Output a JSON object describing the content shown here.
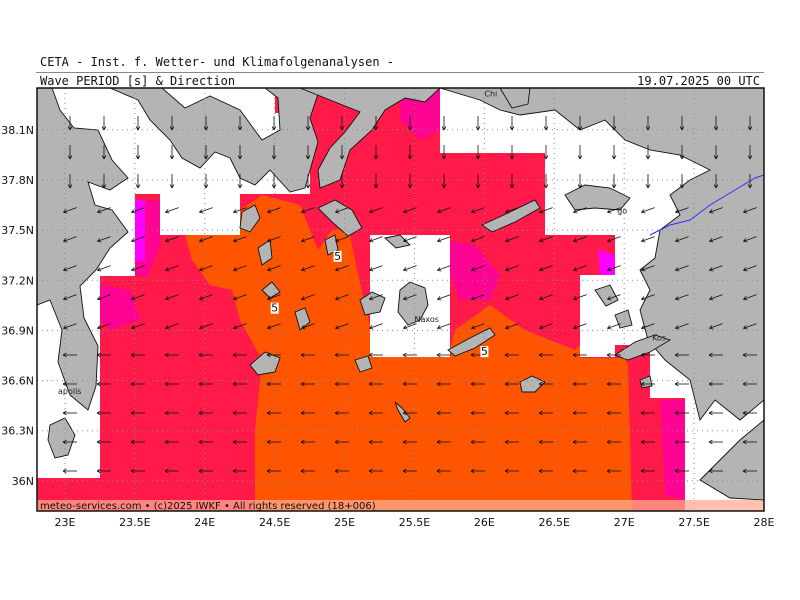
{
  "header": {
    "institute": "CETA - Inst. f. Wetter- und Klimafolgenanalysen -",
    "parameter": "Wave_PERIOD_[s]_&_Direction",
    "datetime": "19.07.2025 00 UTC"
  },
  "footer": {
    "credit": "meteo-services.com • (c)2025 IWKF • All rights reserved (18+006)"
  },
  "axes": {
    "lon_min": 22.8,
    "lon_max": 28.0,
    "lat_min": 35.82,
    "lat_max": 38.35,
    "lon_ticks": [
      {
        "value": 23.0,
        "label": "23E"
      },
      {
        "value": 23.5,
        "label": "23.5E"
      },
      {
        "value": 24.0,
        "label": "24E"
      },
      {
        "value": 24.5,
        "label": "24.5E"
      },
      {
        "value": 25.0,
        "label": "25E"
      },
      {
        "value": 25.5,
        "label": "25.5E"
      },
      {
        "value": 26.0,
        "label": "26E"
      },
      {
        "value": 26.5,
        "label": "26.5E"
      },
      {
        "value": 27.0,
        "label": "27E"
      },
      {
        "value": 27.5,
        "label": "27.5E"
      },
      {
        "value": 28.0,
        "label": "28E"
      }
    ],
    "lat_ticks": [
      {
        "value": 36.0,
        "label": "36N"
      },
      {
        "value": 36.3,
        "label": "36.3N"
      },
      {
        "value": 36.6,
        "label": "36.6N"
      },
      {
        "value": 36.9,
        "label": "36.9N"
      },
      {
        "value": 37.2,
        "label": "37.2N"
      },
      {
        "value": 37.5,
        "label": "37.5N"
      },
      {
        "value": 37.8,
        "label": "37.8N"
      },
      {
        "value": 38.1,
        "label": "38.1N"
      }
    ],
    "grid": true
  },
  "contours": [
    {
      "value": 5,
      "label": "5",
      "lon": 24.95,
      "lat": 37.34
    },
    {
      "value": 5,
      "label": "5",
      "lon": 24.5,
      "lat": 37.03
    },
    {
      "value": 5,
      "label": "5",
      "lon": 26.0,
      "lat": 36.77
    }
  ],
  "places": [
    {
      "name": "Chi",
      "lon": 26.0,
      "lat": 38.3
    },
    {
      "name": "Naxos",
      "lon": 25.5,
      "lat": 36.95
    },
    {
      "name": "Kos",
      "lon": 27.2,
      "lat": 36.84
    },
    {
      "name": "apolis",
      "lon": 22.95,
      "lat": 36.52
    },
    {
      "name": "go",
      "lon": 26.95,
      "lat": 37.6
    }
  ],
  "colors": {
    "land": "#b4b4b4",
    "period_5_plus": "#ff5500",
    "period_4_5": "#ff1a4a",
    "period_3_4": "#ff00a0",
    "period_low": "#ff00ff",
    "no_data": "#ffffff",
    "border": "#3030ff"
  },
  "wave_direction": {
    "north_deg": 180,
    "central_deg": 250,
    "south_deg": 270
  }
}
